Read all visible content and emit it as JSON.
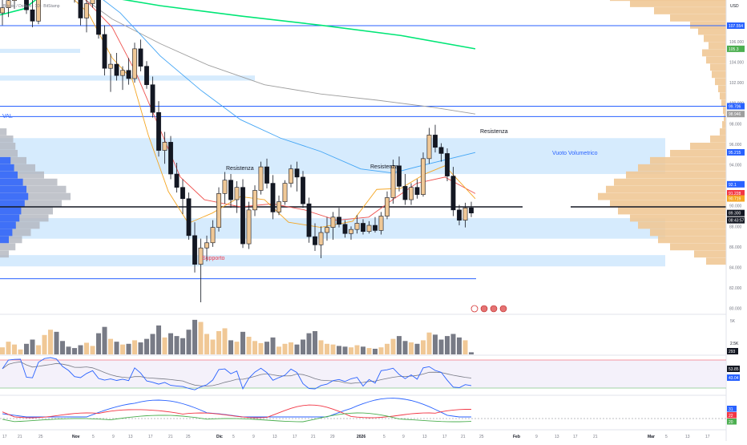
{
  "header": {
    "symbol": "Bitcoin / Dollaro · 1D · BitStamp"
  },
  "axis": {
    "currency": "USD",
    "volume_scale_top": "5K",
    "volume_scale_mid": "2.5K"
  },
  "price_ticks": [
    "118.000",
    "116.000",
    "112.000",
    "110.000",
    "106.000",
    "104.000",
    "102.000",
    "100.000",
    "98.000",
    "96.000",
    "94.000",
    "92.000",
    "90.000",
    "88.000",
    "86.000",
    "84.000",
    "82.000",
    "80.000",
    "79.400",
    "78.000"
  ],
  "price_labels": [
    {
      "value": 114.415,
      "text": "114.415",
      "color": "#2962ff"
    },
    {
      "value": 110.903,
      "text": "110.903",
      "color": "#2962ff"
    },
    {
      "value": 107.554,
      "text": "107.554",
      "color": "#2962ff"
    },
    {
      "value": 105.3,
      "text": "105.3",
      "color": "#4caf50"
    },
    {
      "value": 99.706,
      "text": "99.706",
      "color": "#2962ff"
    },
    {
      "value": 98.946,
      "text": "98.946",
      "color": "#9e9e9e"
    },
    {
      "value": 95.215,
      "text": "95.215",
      "color": "#2962ff"
    },
    {
      "value": 92.1,
      "text": "92.1",
      "color": "#2962ff"
    },
    {
      "value": 91.228,
      "text": "91.228",
      "color": "#f23645"
    },
    {
      "value": 90.719,
      "text": "90.719",
      "color": "#f5a623"
    },
    {
      "value": 89.3,
      "text": "89.300",
      "color": "#131722"
    },
    {
      "value": 88.6,
      "text": "08:43:57",
      "color": "#131722"
    }
  ],
  "volume_last": "293",
  "rsi": {
    "values": [
      "53.85",
      "43.04"
    ],
    "colors": [
      "#131722",
      "#2962ff"
    ]
  },
  "dmi": {
    "values": [
      "31",
      "22",
      "20"
    ],
    "colors": [
      "#2962ff",
      "#f23645",
      "#4caf50"
    ]
  },
  "annotations": {
    "resistance_right": "Resistenza",
    "resistance_left": "Resistenza",
    "resistance_mid": "Resistenza",
    "support": "Supporto",
    "val": "VAL",
    "volume_void": "Vuoto Volumetrico"
  },
  "time_labels": [
    "17",
    "21",
    "25",
    "Nov",
    "5",
    "9",
    "13",
    "17",
    "21",
    "25",
    "Dic",
    "5",
    "9",
    "13",
    "17",
    "21",
    "29",
    "2026",
    "5",
    "9",
    "13",
    "17",
    "21",
    "25",
    "Feb",
    "9",
    "13",
    "17",
    "21",
    "Mar",
    "5",
    "13",
    "17"
  ],
  "chart_data": {
    "type": "candlestick",
    "title": "Bitcoin / Dollaro · 1D · BitStamp",
    "y_unit": "USD (thousands)",
    "ylim": [
      78,
      119
    ],
    "candles": [
      [
        108.8,
        110.1,
        107.6,
        109.3
      ],
      [
        109.3,
        110.8,
        108.4,
        110.0
      ],
      [
        110.0,
        111.9,
        109.2,
        111.2
      ],
      [
        111.2,
        112.7,
        110.4,
        111.6
      ],
      [
        111.6,
        112.3,
        108.7,
        109.1
      ],
      [
        109.1,
        110.1,
        107.4,
        108.0
      ],
      [
        108.0,
        111.4,
        107.7,
        111.0
      ],
      [
        111.0,
        113.4,
        110.5,
        112.9
      ],
      [
        112.9,
        115.9,
        112.2,
        115.2
      ],
      [
        115.2,
        116.4,
        113.8,
        114.6
      ],
      [
        114.6,
        115.4,
        111.3,
        112.0
      ],
      [
        112.0,
        113.2,
        110.5,
        110.6
      ],
      [
        110.6,
        111.4,
        109.8,
        110.3
      ],
      [
        110.3,
        110.9,
        107.6,
        108.3
      ],
      [
        108.3,
        110.2,
        106.9,
        109.7
      ],
      [
        109.7,
        111.6,
        109.3,
        110.5
      ],
      [
        110.5,
        110.9,
        106.3,
        106.7
      ],
      [
        106.7,
        107.6,
        102.7,
        103.4
      ],
      [
        103.4,
        104.8,
        101.1,
        103.8
      ],
      [
        103.8,
        104.9,
        102.2,
        102.7
      ],
      [
        102.7,
        103.6,
        101.3,
        103.2
      ],
      [
        103.2,
        104.4,
        101.8,
        102.4
      ],
      [
        102.4,
        105.9,
        102.0,
        105.3
      ],
      [
        105.3,
        106.2,
        103.1,
        103.6
      ],
      [
        103.6,
        104.1,
        101.4,
        101.8
      ],
      [
        101.8,
        102.6,
        98.6,
        99.1
      ],
      [
        99.1,
        100.2,
        94.8,
        95.4
      ],
      [
        95.4,
        97.2,
        94.1,
        96.2
      ],
      [
        96.2,
        96.8,
        92.6,
        93.1
      ],
      [
        93.1,
        94.2,
        91.3,
        91.8
      ],
      [
        91.8,
        92.6,
        89.2,
        90.7
      ],
      [
        90.7,
        91.3,
        86.7,
        87.1
      ],
      [
        87.1,
        88.4,
        83.5,
        84.3
      ],
      [
        84.3,
        86.8,
        80.6,
        85.9
      ],
      [
        85.9,
        87.1,
        84.6,
        86.4
      ],
      [
        86.4,
        88.6,
        86.0,
        87.9
      ],
      [
        87.9,
        91.8,
        87.5,
        91.2
      ],
      [
        91.2,
        93.3,
        90.2,
        92.5
      ],
      [
        92.5,
        93.1,
        89.8,
        90.6
      ],
      [
        90.6,
        92.4,
        89.3,
        91.8
      ],
      [
        91.8,
        92.6,
        85.9,
        86.3
      ],
      [
        86.3,
        90.4,
        85.8,
        89.6
      ],
      [
        89.6,
        92.0,
        89.0,
        91.5
      ],
      [
        91.5,
        94.3,
        91.1,
        93.8
      ],
      [
        93.8,
        94.6,
        91.7,
        92.2
      ],
      [
        92.2,
        93.0,
        88.7,
        89.4
      ],
      [
        89.4,
        91.0,
        89.1,
        90.4
      ],
      [
        90.4,
        92.5,
        90.1,
        92.2
      ],
      [
        92.2,
        94.0,
        91.8,
        93.6
      ],
      [
        93.6,
        94.3,
        91.4,
        92.8
      ],
      [
        92.8,
        93.4,
        89.8,
        90.2
      ],
      [
        90.2,
        90.8,
        86.4,
        87.0
      ],
      [
        87.0,
        88.3,
        85.6,
        86.2
      ],
      [
        86.2,
        88.0,
        84.9,
        87.4
      ],
      [
        87.4,
        88.9,
        86.6,
        87.9
      ],
      [
        87.9,
        89.4,
        86.7,
        88.9
      ],
      [
        88.9,
        89.8,
        87.9,
        88.2
      ],
      [
        88.2,
        88.6,
        86.9,
        87.3
      ],
      [
        87.3,
        88.0,
        86.7,
        87.7
      ],
      [
        87.7,
        89.1,
        87.3,
        88.3
      ],
      [
        88.3,
        88.7,
        87.2,
        87.5
      ],
      [
        87.5,
        88.5,
        87.3,
        88.1
      ],
      [
        88.1,
        88.9,
        87.4,
        87.6
      ],
      [
        87.6,
        89.4,
        87.2,
        89.0
      ],
      [
        89.0,
        91.4,
        88.7,
        90.8
      ],
      [
        90.8,
        94.5,
        90.2,
        93.9
      ],
      [
        93.9,
        94.8,
        91.4,
        91.9
      ],
      [
        91.9,
        93.1,
        90.1,
        90.6
      ],
      [
        90.6,
        92.2,
        90.1,
        91.8
      ],
      [
        91.8,
        92.6,
        90.7,
        91.1
      ],
      [
        91.1,
        95.2,
        90.9,
        94.6
      ],
      [
        94.6,
        97.6,
        94.1,
        96.9
      ],
      [
        96.9,
        97.9,
        95.2,
        95.7
      ],
      [
        95.7,
        96.1,
        94.3,
        95.1
      ],
      [
        95.1,
        95.6,
        92.4,
        92.9
      ],
      [
        92.9,
        93.8,
        89.0,
        89.6
      ],
      [
        89.6,
        90.1,
        88.1,
        88.6
      ],
      [
        88.6,
        90.3,
        87.9,
        89.8
      ],
      [
        89.8,
        90.4,
        88.9,
        89.3
      ]
    ],
    "volume": [
      20,
      36,
      28,
      14,
      30,
      42,
      26,
      55,
      70,
      64,
      38,
      22,
      18,
      26,
      33,
      24,
      60,
      78,
      44,
      36,
      28,
      30,
      40,
      34,
      44,
      58,
      82,
      48,
      60,
      52,
      46,
      70,
      98,
      92,
      58,
      42,
      66,
      74,
      40,
      36,
      64,
      50,
      38,
      32,
      36,
      48,
      22,
      30,
      34,
      28,
      42,
      60,
      66,
      40,
      30,
      28,
      24,
      22,
      20,
      26,
      22,
      18,
      16,
      20,
      30,
      44,
      52,
      38,
      34,
      30,
      40,
      62,
      56,
      42,
      52,
      58,
      48,
      40,
      6
    ],
    "ma_green_200": [
      [
        0,
        108.6
      ],
      [
        30,
        109.2
      ],
      [
        60,
        111.0
      ],
      [
        100,
        110.8
      ],
      [
        200,
        109.5
      ],
      [
        300,
        108.5
      ],
      [
        400,
        107.6
      ],
      [
        500,
        106.6
      ],
      [
        593,
        105.3
      ]
    ],
    "ma_gray_100": [
      [
        0,
        116.0
      ],
      [
        40,
        113.6
      ],
      [
        80,
        111.6
      ],
      [
        140,
        108.2
      ],
      [
        200,
        105.8
      ],
      [
        260,
        103.7
      ],
      [
        330,
        101.8
      ],
      [
        400,
        100.9
      ],
      [
        470,
        100.3
      ],
      [
        540,
        99.6
      ],
      [
        593,
        98.95
      ]
    ],
    "ma_blue_50": [
      [
        0,
        115.0
      ],
      [
        50,
        113.2
      ],
      [
        100,
        111.8
      ],
      [
        150,
        108.8
      ],
      [
        200,
        104.6
      ],
      [
        250,
        101.3
      ],
      [
        300,
        98.4
      ],
      [
        350,
        96.6
      ],
      [
        400,
        95.3
      ],
      [
        450,
        93.6
      ],
      [
        490,
        93.2
      ],
      [
        530,
        94.0
      ],
      [
        593,
        95.2
      ]
    ],
    "ma_red_20": [
      [
        0,
        114.0
      ],
      [
        60,
        112.2
      ],
      [
        100,
        110.6
      ],
      [
        140,
        107.4
      ],
      [
        170,
        102.9
      ],
      [
        200,
        97.4
      ],
      [
        225,
        92.8
      ],
      [
        255,
        90.6
      ],
      [
        300,
        89.9
      ],
      [
        340,
        90.2
      ],
      [
        380,
        89.6
      ],
      [
        420,
        88.6
      ],
      [
        460,
        88.9
      ],
      [
        490,
        90.6
      ],
      [
        520,
        92.2
      ],
      [
        555,
        92.8
      ],
      [
        593,
        91.2
      ]
    ],
    "ma_yellow_9": [
      [
        0,
        110.5
      ],
      [
        40,
        111.2
      ],
      [
        80,
        111.0
      ],
      [
        110,
        108.8
      ],
      [
        140,
        104.4
      ],
      [
        165,
        102.3
      ],
      [
        185,
        96.9
      ],
      [
        210,
        91.4
      ],
      [
        235,
        88.3
      ],
      [
        265,
        89.3
      ],
      [
        300,
        90.9
      ],
      [
        330,
        90.6
      ],
      [
        360,
        88.4
      ],
      [
        400,
        87.9
      ],
      [
        440,
        88.5
      ],
      [
        470,
        91.6
      ],
      [
        500,
        91.7
      ],
      [
        530,
        93.1
      ],
      [
        555,
        93.9
      ],
      [
        593,
        90.7
      ]
    ],
    "horizontal_levels": [
      {
        "price": 116.9,
        "x_end": 906
      },
      {
        "price": 114.415,
        "x_end": 906
      },
      {
        "price": 110.903,
        "x_end": 906
      },
      {
        "price": 107.554,
        "x_end": 906
      },
      {
        "price": 99.706,
        "x_end": 906
      },
      {
        "price": 98.7,
        "x_end": 906
      },
      {
        "price": 89.9,
        "x_end": 652
      },
      {
        "price": 89.9,
        "x_start": 712,
        "x_end": 906
      },
      {
        "price": 82.9,
        "x_end": 594
      }
    ],
    "zones": [
      {
        "top": 118.4,
        "bottom": 117.0,
        "x0": 0,
        "x1": 120
      },
      {
        "top": 102.7,
        "bottom": 102.2,
        "x0": 0,
        "x1": 318
      },
      {
        "top": 105.3,
        "bottom": 104.9,
        "x0": 0,
        "x1": 100
      },
      {
        "top": 96.6,
        "bottom": 93.1,
        "x0": 0,
        "x1": 830
      },
      {
        "top": 88.8,
        "bottom": 86.8,
        "x0": 0,
        "x1": 830
      },
      {
        "top": 85.2,
        "bottom": 84.1,
        "x0": 0,
        "x1": 830
      }
    ],
    "volume_profile_right": [
      [
        117.5,
        50
      ],
      [
        116.5,
        80
      ],
      [
        115.5,
        95
      ],
      [
        114.8,
        120
      ],
      [
        114.0,
        140
      ],
      [
        113.0,
        120
      ],
      [
        112.2,
        110
      ],
      [
        111.5,
        160
      ],
      [
        110.9,
        165
      ],
      [
        110.3,
        145
      ],
      [
        109.7,
        120
      ],
      [
        109.0,
        90
      ],
      [
        108.3,
        70
      ],
      [
        107.6,
        45
      ],
      [
        107.0,
        35
      ],
      [
        106.3,
        28
      ],
      [
        105.6,
        22
      ],
      [
        104.9,
        30
      ],
      [
        104.2,
        25
      ],
      [
        103.5,
        20
      ],
      [
        102.8,
        18
      ],
      [
        102.1,
        14
      ],
      [
        101.4,
        10
      ],
      [
        100.7,
        8
      ],
      [
        100.0,
        6
      ],
      [
        99.3,
        4
      ],
      [
        98.6,
        3
      ],
      [
        97.9,
        5
      ],
      [
        97.2,
        8
      ],
      [
        96.5,
        20
      ],
      [
        95.8,
        45
      ],
      [
        95.1,
        70
      ],
      [
        94.4,
        95
      ],
      [
        93.7,
        110
      ],
      [
        93.0,
        125
      ],
      [
        92.3,
        140
      ],
      [
        91.6,
        150
      ],
      [
        90.9,
        160
      ],
      [
        90.2,
        145
      ],
      [
        89.5,
        135
      ],
      [
        88.8,
        120
      ],
      [
        88.1,
        110
      ],
      [
        87.4,
        95
      ],
      [
        86.7,
        85
      ],
      [
        86.0,
        70
      ],
      [
        85.3,
        40
      ],
      [
        84.6,
        25
      ]
    ],
    "volume_profile_left": [
      [
        97.2,
        15
      ],
      [
        96.5,
        30
      ],
      [
        95.8,
        35
      ],
      [
        95.1,
        40
      ],
      [
        94.4,
        60
      ],
      [
        93.7,
        80
      ],
      [
        93.0,
        100
      ],
      [
        92.3,
        130
      ],
      [
        91.6,
        150
      ],
      [
        90.9,
        160
      ],
      [
        90.2,
        140
      ],
      [
        89.5,
        120
      ],
      [
        88.8,
        110
      ],
      [
        88.1,
        90
      ],
      [
        87.4,
        70
      ],
      [
        86.7,
        50
      ],
      [
        86.0,
        35
      ],
      [
        85.3,
        20
      ]
    ]
  }
}
